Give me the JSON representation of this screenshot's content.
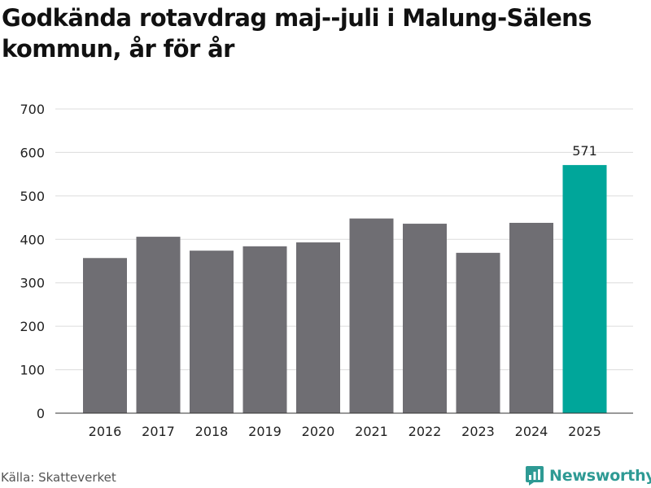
{
  "title": "Godkända rotavdrag maj--juli i Malung-Sälens kommun, år för år",
  "source": "Källa: Skatteverket",
  "brand": {
    "name": "Newsworthy",
    "icon": "newsworthy-logo-icon"
  },
  "colors": {
    "bar": "#6f6e73",
    "highlight": "#00a69a",
    "grid": "#dcdcdc",
    "axis": "#333333",
    "brand": "#2e9a94"
  },
  "chart_data": {
    "type": "bar",
    "categories": [
      "2016",
      "2017",
      "2018",
      "2019",
      "2020",
      "2021",
      "2022",
      "2023",
      "2024",
      "2025"
    ],
    "values": [
      357,
      406,
      374,
      384,
      393,
      448,
      436,
      369,
      438,
      571
    ],
    "highlight_index": 9,
    "data_labels": [
      {
        "index": 9,
        "text": "571"
      }
    ],
    "ylim": [
      0,
      700
    ],
    "yticks": [
      0,
      100,
      200,
      300,
      400,
      500,
      600,
      700
    ],
    "grid": true,
    "legend": "none",
    "xlabel": "",
    "ylabel": ""
  }
}
